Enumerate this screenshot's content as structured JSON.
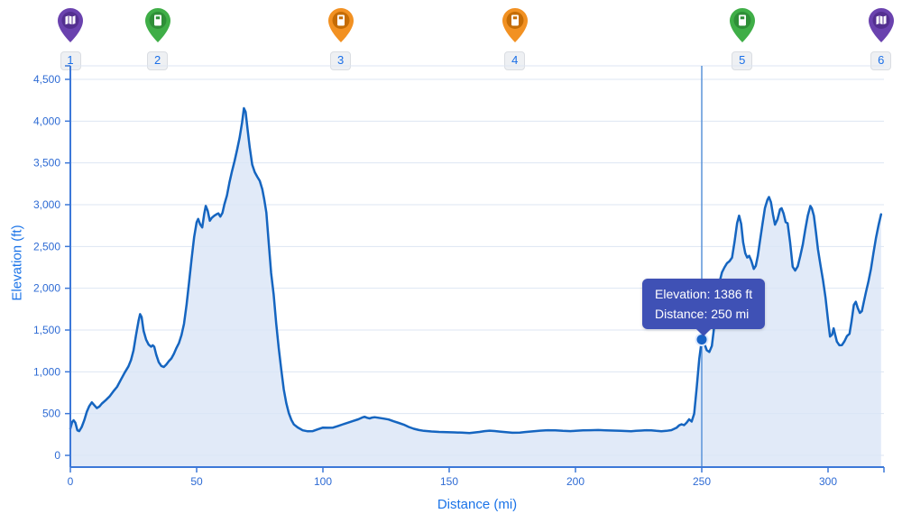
{
  "tooltip": {
    "line1": "Elevation: 1386 ft",
    "line2": "Distance: 250 mi"
  },
  "markers": [
    {
      "number": "1",
      "mile": 0,
      "icon": "map-icon",
      "color": "#6a42ae",
      "dark": "#532f90"
    },
    {
      "number": "2",
      "mile": 34.5,
      "icon": "fuel-icon",
      "color": "#3fae47",
      "dark": "#2e8f37"
    },
    {
      "number": "3",
      "mile": 107,
      "icon": "fuel-icon",
      "color": "#f29122",
      "dark": "#c56c05"
    },
    {
      "number": "4",
      "mile": 176,
      "icon": "fuel-icon",
      "color": "#f29122",
      "dark": "#c56c05"
    },
    {
      "number": "5",
      "mile": 266,
      "icon": "fuel-icon",
      "color": "#3fae47",
      "dark": "#2e8f37"
    },
    {
      "number": "6",
      "mile": 321,
      "icon": "map-icon",
      "color": "#6a42ae",
      "dark": "#532f90"
    }
  ],
  "colors": {
    "line": "#1565c0",
    "area_fill": "#d9e5f6",
    "grid": "#dde6f3",
    "axis": "#3c78d8",
    "tick_text": "#2e6bd4",
    "axis_title": "#1a73e8",
    "crosshair": "#5b93d9",
    "dot_fill": "#1863c6",
    "tooltip_bg": "#3f51b5"
  },
  "chart_data": {
    "type": "area",
    "title": "",
    "xlabel": "Distance (mi)",
    "ylabel": "Elevation (ft)",
    "xlim": [
      0,
      322
    ],
    "ylim": [
      -150,
      4660
    ],
    "grid": "horizontal-only",
    "x_ticks": [
      {
        "v": 0,
        "label": "0"
      },
      {
        "v": 50,
        "label": "50"
      },
      {
        "v": 100,
        "label": "100"
      },
      {
        "v": 150,
        "label": "150"
      },
      {
        "v": 200,
        "label": "200"
      },
      {
        "v": 250,
        "label": "250"
      },
      {
        "v": 300,
        "label": "300"
      }
    ],
    "y_ticks": [
      {
        "v": 0,
        "label": "0"
      },
      {
        "v": 500,
        "label": "500"
      },
      {
        "v": 1000,
        "label": "1,000"
      },
      {
        "v": 1500,
        "label": "1,500"
      },
      {
        "v": 2000,
        "label": "2,000"
      },
      {
        "v": 2500,
        "label": "2,500"
      },
      {
        "v": 3000,
        "label": "3,000"
      },
      {
        "v": 3500,
        "label": "3,500"
      },
      {
        "v": 4000,
        "label": "4,000"
      },
      {
        "v": 4500,
        "label": "4,500"
      }
    ],
    "highlight": {
      "x": 250,
      "y": 1386
    },
    "series": [
      {
        "name": "elevation-profile",
        "points": [
          [
            0,
            320
          ],
          [
            0.7,
            400
          ],
          [
            1.3,
            420
          ],
          [
            2,
            390
          ],
          [
            2.8,
            300
          ],
          [
            3.5,
            290
          ],
          [
            4.5,
            340
          ],
          [
            5.5,
            420
          ],
          [
            6.5,
            520
          ],
          [
            7.5,
            590
          ],
          [
            8.5,
            635
          ],
          [
            9.5,
            600
          ],
          [
            10.5,
            565
          ],
          [
            11.5,
            585
          ],
          [
            12.5,
            620
          ],
          [
            14,
            660
          ],
          [
            15.5,
            705
          ],
          [
            17,
            765
          ],
          [
            18.5,
            820
          ],
          [
            20,
            905
          ],
          [
            21.5,
            990
          ],
          [
            23,
            1065
          ],
          [
            24,
            1140
          ],
          [
            25,
            1255
          ],
          [
            26,
            1440
          ],
          [
            27,
            1610
          ],
          [
            27.6,
            1690
          ],
          [
            28.2,
            1655
          ],
          [
            29,
            1490
          ],
          [
            30,
            1385
          ],
          [
            31,
            1325
          ],
          [
            32,
            1300
          ],
          [
            32.6,
            1318
          ],
          [
            33.2,
            1300
          ],
          [
            34,
            1205
          ],
          [
            35,
            1115
          ],
          [
            36,
            1070
          ],
          [
            37,
            1058
          ],
          [
            38,
            1088
          ],
          [
            39,
            1128
          ],
          [
            40,
            1160
          ],
          [
            41,
            1215
          ],
          [
            42,
            1285
          ],
          [
            43,
            1345
          ],
          [
            44,
            1440
          ],
          [
            45,
            1575
          ],
          [
            46,
            1800
          ],
          [
            47,
            2070
          ],
          [
            48,
            2350
          ],
          [
            49,
            2610
          ],
          [
            50,
            2790
          ],
          [
            50.6,
            2830
          ],
          [
            51.4,
            2765
          ],
          [
            52.2,
            2728
          ],
          [
            53,
            2890
          ],
          [
            53.6,
            2985
          ],
          [
            54.4,
            2925
          ],
          [
            55.2,
            2808
          ],
          [
            56,
            2842
          ],
          [
            57,
            2868
          ],
          [
            58,
            2888
          ],
          [
            58.6,
            2895
          ],
          [
            59.4,
            2858
          ],
          [
            60.2,
            2902
          ],
          [
            61,
            3005
          ],
          [
            62,
            3110
          ],
          [
            63,
            3268
          ],
          [
            64,
            3400
          ],
          [
            65,
            3520
          ],
          [
            66,
            3655
          ],
          [
            67,
            3800
          ],
          [
            68,
            3985
          ],
          [
            68.7,
            4155
          ],
          [
            69.4,
            4110
          ],
          [
            70.2,
            3890
          ],
          [
            71,
            3690
          ],
          [
            72,
            3480
          ],
          [
            73,
            3390
          ],
          [
            74,
            3335
          ],
          [
            75,
            3285
          ],
          [
            76,
            3185
          ],
          [
            76.8,
            3060
          ],
          [
            77.6,
            2905
          ],
          [
            78.5,
            2560
          ],
          [
            79.5,
            2180
          ],
          [
            80.5,
            1925
          ],
          [
            81.5,
            1580
          ],
          [
            82.5,
            1285
          ],
          [
            83.5,
            1030
          ],
          [
            84.5,
            790
          ],
          [
            85.5,
            625
          ],
          [
            86.5,
            505
          ],
          [
            87.5,
            425
          ],
          [
            88.5,
            370
          ],
          [
            90,
            335
          ],
          [
            92,
            300
          ],
          [
            94,
            288
          ],
          [
            96,
            290
          ],
          [
            98,
            312
          ],
          [
            100,
            332
          ],
          [
            102,
            330
          ],
          [
            104,
            332
          ],
          [
            106,
            352
          ],
          [
            108,
            372
          ],
          [
            110,
            392
          ],
          [
            112,
            412
          ],
          [
            114,
            432
          ],
          [
            115.5,
            452
          ],
          [
            116.5,
            462
          ],
          [
            117.5,
            450
          ],
          [
            118.5,
            442
          ],
          [
            119.5,
            452
          ],
          [
            120.5,
            456
          ],
          [
            122,
            450
          ],
          [
            124,
            440
          ],
          [
            126,
            430
          ],
          [
            128,
            408
          ],
          [
            130,
            388
          ],
          [
            132,
            368
          ],
          [
            134,
            340
          ],
          [
            136,
            318
          ],
          [
            138,
            303
          ],
          [
            140,
            293
          ],
          [
            143,
            286
          ],
          [
            146,
            281
          ],
          [
            149,
            278
          ],
          [
            152,
            275
          ],
          [
            155,
            272
          ],
          [
            158,
            268
          ],
          [
            160,
            274
          ],
          [
            162,
            281
          ],
          [
            164,
            290
          ],
          [
            166,
            296
          ],
          [
            168,
            291
          ],
          [
            170,
            285
          ],
          [
            172,
            280
          ],
          [
            175,
            271
          ],
          [
            178,
            273
          ],
          [
            180,
            279
          ],
          [
            183,
            287
          ],
          [
            186,
            296
          ],
          [
            189,
            301
          ],
          [
            192,
            300
          ],
          [
            195,
            294
          ],
          [
            198,
            290
          ],
          [
            200,
            293
          ],
          [
            203,
            299
          ],
          [
            206,
            301
          ],
          [
            209,
            303
          ],
          [
            212,
            300
          ],
          [
            215,
            297
          ],
          [
            218,
            294
          ],
          [
            220,
            291
          ],
          [
            222,
            289
          ],
          [
            224,
            293
          ],
          [
            226,
            297
          ],
          [
            228,
            301
          ],
          [
            230,
            300
          ],
          [
            232,
            294
          ],
          [
            234,
            289
          ],
          [
            236,
            293
          ],
          [
            238,
            302
          ],
          [
            240,
            330
          ],
          [
            241,
            358
          ],
          [
            242,
            372
          ],
          [
            243,
            362
          ],
          [
            244,
            392
          ],
          [
            245,
            432
          ],
          [
            246,
            405
          ],
          [
            247,
            500
          ],
          [
            248,
            810
          ],
          [
            249,
            1150
          ],
          [
            250,
            1386
          ],
          [
            251,
            1340
          ],
          [
            252,
            1258
          ],
          [
            253,
            1238
          ],
          [
            254,
            1310
          ],
          [
            255,
            1560
          ],
          [
            256,
            1840
          ],
          [
            257,
            2070
          ],
          [
            258,
            2190
          ],
          [
            259,
            2250
          ],
          [
            260,
            2300
          ],
          [
            261,
            2325
          ],
          [
            262,
            2368
          ],
          [
            263,
            2560
          ],
          [
            264,
            2780
          ],
          [
            264.8,
            2868
          ],
          [
            265.6,
            2770
          ],
          [
            266.4,
            2550
          ],
          [
            267.2,
            2420
          ],
          [
            268,
            2368
          ],
          [
            268.8,
            2388
          ],
          [
            269.6,
            2330
          ],
          [
            270.6,
            2232
          ],
          [
            271.4,
            2268
          ],
          [
            272.2,
            2390
          ],
          [
            273,
            2555
          ],
          [
            274,
            2760
          ],
          [
            275,
            2958
          ],
          [
            276,
            3058
          ],
          [
            276.6,
            3092
          ],
          [
            277.4,
            3030
          ],
          [
            278.2,
            2880
          ],
          [
            279,
            2762
          ],
          [
            280,
            2825
          ],
          [
            281,
            2945
          ],
          [
            281.6,
            2958
          ],
          [
            282.4,
            2895
          ],
          [
            283.2,
            2792
          ],
          [
            284,
            2778
          ],
          [
            285,
            2545
          ],
          [
            286,
            2258
          ],
          [
            287,
            2212
          ],
          [
            288,
            2262
          ],
          [
            289,
            2385
          ],
          [
            290,
            2522
          ],
          [
            291,
            2705
          ],
          [
            292,
            2872
          ],
          [
            293,
            2985
          ],
          [
            293.6,
            2955
          ],
          [
            294.4,
            2868
          ],
          [
            295.2,
            2672
          ],
          [
            296,
            2468
          ],
          [
            297,
            2278
          ],
          [
            298,
            2098
          ],
          [
            299,
            1888
          ],
          [
            300,
            1618
          ],
          [
            300.8,
            1422
          ],
          [
            301.6,
            1445
          ],
          [
            302.2,
            1520
          ],
          [
            302.8,
            1448
          ],
          [
            303.5,
            1362
          ],
          [
            304.5,
            1318
          ],
          [
            305.5,
            1320
          ],
          [
            306.5,
            1365
          ],
          [
            307.5,
            1428
          ],
          [
            308.5,
            1455
          ],
          [
            309.3,
            1600
          ],
          [
            310.2,
            1800
          ],
          [
            311,
            1838
          ],
          [
            311.8,
            1762
          ],
          [
            312.6,
            1705
          ],
          [
            313.4,
            1725
          ],
          [
            314.2,
            1842
          ],
          [
            315,
            1952
          ],
          [
            316,
            2082
          ],
          [
            317,
            2232
          ],
          [
            318,
            2425
          ],
          [
            319,
            2605
          ],
          [
            320,
            2755
          ],
          [
            321,
            2885
          ]
        ]
      }
    ]
  }
}
